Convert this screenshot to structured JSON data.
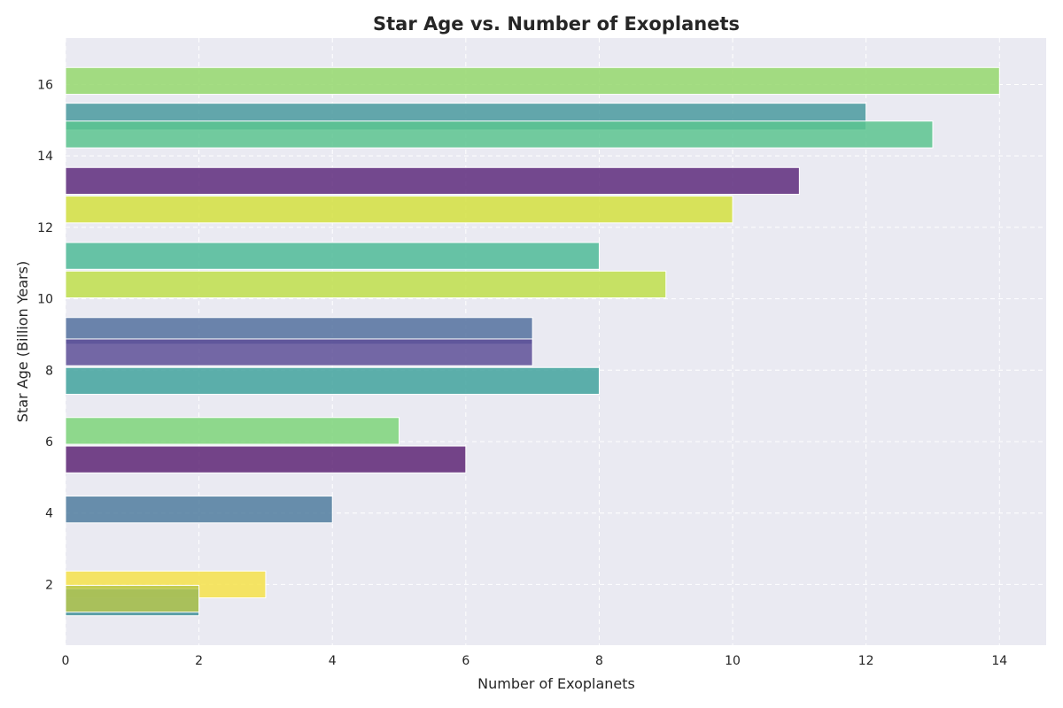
{
  "chart_data": {
    "type": "bar",
    "orientation": "horizontal",
    "title": "Star Age vs. Number of Exoplanets",
    "xlabel": "Number of Exoplanets",
    "ylabel": "Star Age (Billion Years)",
    "xlim": [
      0,
      14.7
    ],
    "ylim": [
      0.3,
      17.3
    ],
    "x_ticks": [
      0,
      2,
      4,
      6,
      8,
      10,
      12,
      14
    ],
    "y_ticks": [
      2,
      4,
      6,
      8,
      10,
      12,
      14,
      16
    ],
    "grid": true,
    "background": "#EAEAF2",
    "bars": [
      {
        "y": 16.1,
        "value": 14,
        "color": "#95D86D"
      },
      {
        "y": 15.1,
        "value": 12,
        "color": "#4A9A9F"
      },
      {
        "y": 14.6,
        "value": 13,
        "color": "#5CC48F"
      },
      {
        "y": 13.3,
        "value": 11,
        "color": "#5E2C7C"
      },
      {
        "y": 12.5,
        "value": 10,
        "color": "#D4E13F"
      },
      {
        "y": 11.2,
        "value": 8,
        "color": "#4FBB98"
      },
      {
        "y": 10.4,
        "value": 9,
        "color": "#C0DF4B"
      },
      {
        "y": 9.1,
        "value": 7,
        "color": "#53719F"
      },
      {
        "y": 8.5,
        "value": 7,
        "color": "#5E5098"
      },
      {
        "y": 7.7,
        "value": 8,
        "color": "#42A39D"
      },
      {
        "y": 6.3,
        "value": 5,
        "color": "#7ED57A"
      },
      {
        "y": 5.5,
        "value": 6,
        "color": "#5E2675"
      },
      {
        "y": 4.1,
        "value": 4,
        "color": "#507C9F"
      },
      {
        "y": 2.0,
        "value": 3,
        "color": "#F6E24A"
      },
      {
        "y": 1.5,
        "value": 2,
        "color": "#3F8F9A"
      },
      {
        "y": 1.6,
        "value": 2,
        "color": "#B7C74D"
      }
    ]
  }
}
